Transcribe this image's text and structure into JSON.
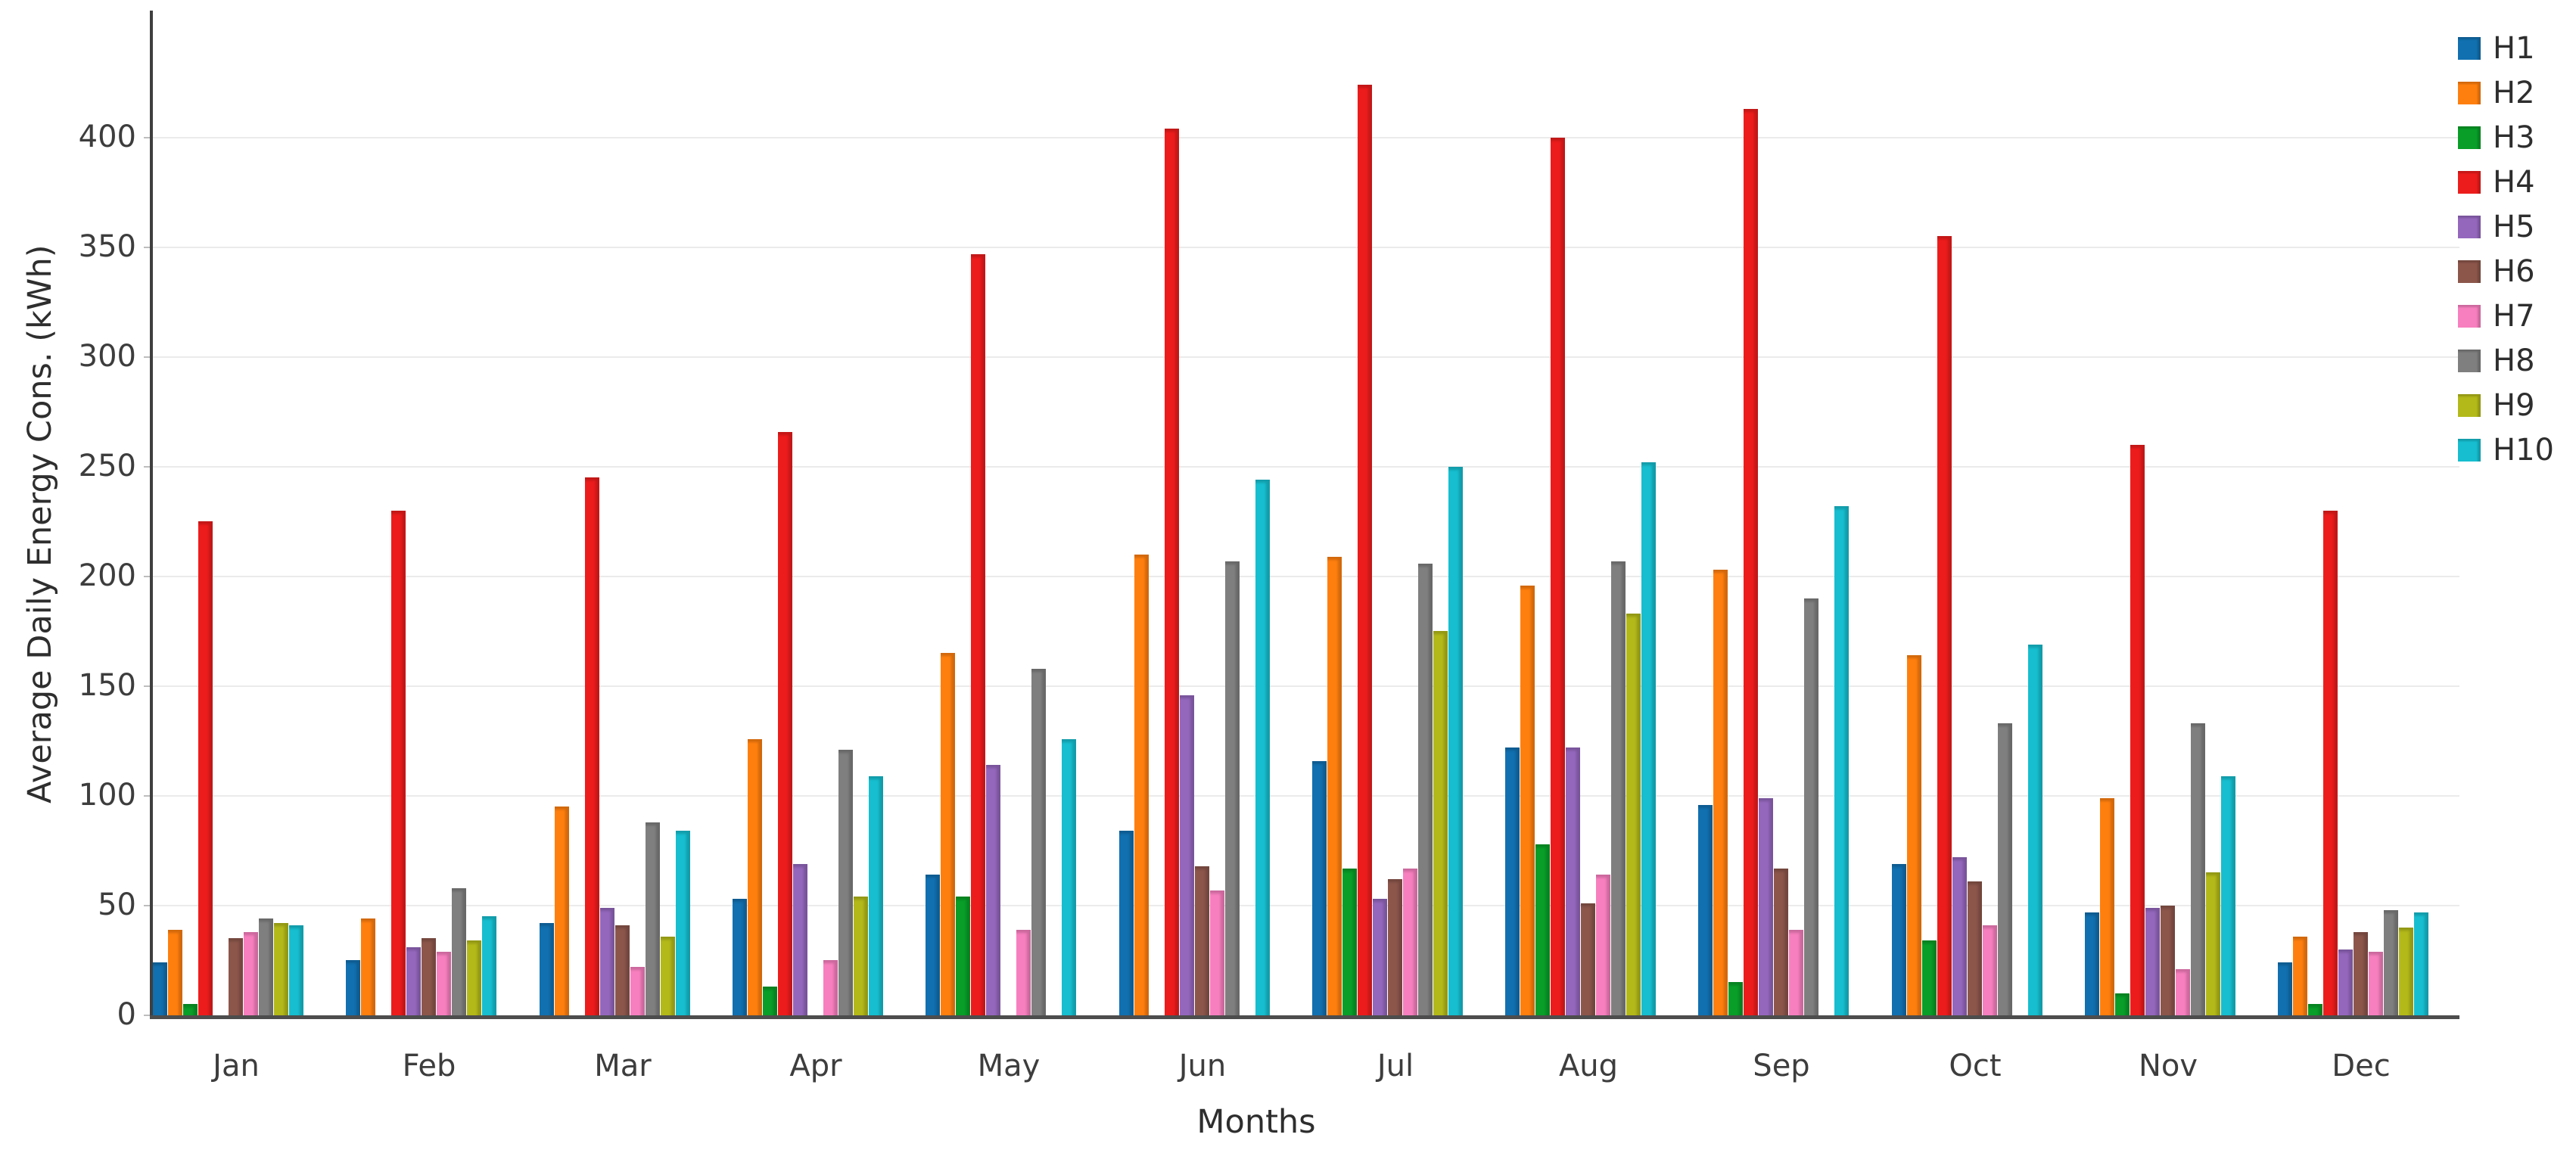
{
  "figure": {
    "y_axis_title": "Average Daily Energy Cons. (kWh)",
    "x_axis_title": "Months"
  },
  "chart_data": {
    "type": "bar",
    "title": "",
    "xlabel": "Months",
    "ylabel": "Average Daily Energy Cons. (kWh)",
    "categories": [
      "Jan",
      "Feb",
      "Mar",
      "Apr",
      "May",
      "Jun",
      "Jul",
      "Aug",
      "Sep",
      "Oct",
      "Nov",
      "Dec"
    ],
    "y_ticks": [
      0,
      50,
      100,
      150,
      200,
      250,
      300,
      350,
      400
    ],
    "ylim": [
      0,
      440
    ],
    "grid": true,
    "legend_position": "outside-top-right",
    "series": [
      {
        "name": "H1",
        "color": "#1170b0",
        "values": [
          24,
          25,
          42,
          53,
          64,
          84,
          116,
          122,
          96,
          69,
          47,
          24
        ]
      },
      {
        "name": "H2",
        "color": "#ff7f0e",
        "values": [
          39,
          44,
          95,
          126,
          165,
          210,
          209,
          196,
          203,
          164,
          99,
          36
        ]
      },
      {
        "name": "H3",
        "color": "#089e28",
        "values": [
          5,
          0,
          0,
          13,
          54,
          0,
          67,
          78,
          15,
          34,
          10,
          5
        ]
      },
      {
        "name": "H4",
        "color": "#ed1c1c",
        "values": [
          225,
          230,
          245,
          266,
          347,
          404,
          424,
          400,
          413,
          355,
          260,
          230
        ]
      },
      {
        "name": "H5",
        "color": "#9467bd",
        "values": [
          0,
          31,
          49,
          69,
          114,
          146,
          53,
          122,
          99,
          72,
          49,
          30
        ]
      },
      {
        "name": "H6",
        "color": "#8c564b",
        "values": [
          35,
          35,
          41,
          0,
          0,
          68,
          62,
          51,
          67,
          61,
          50,
          38
        ]
      },
      {
        "name": "H7",
        "color": "#f77fbf",
        "values": [
          38,
          29,
          22,
          25,
          39,
          57,
          67,
          64,
          39,
          41,
          21,
          29
        ]
      },
      {
        "name": "H8",
        "color": "#7f7f7f",
        "values": [
          44,
          58,
          88,
          121,
          158,
          207,
          206,
          207,
          190,
          133,
          133,
          48
        ]
      },
      {
        "name": "H9",
        "color": "#b3b919",
        "values": [
          42,
          34,
          36,
          54,
          0,
          0,
          175,
          183,
          0,
          0,
          65,
          40
        ]
      },
      {
        "name": "H10",
        "color": "#16becf",
        "values": [
          41,
          45,
          84,
          109,
          126,
          244,
          250,
          252,
          232,
          169,
          109,
          47
        ]
      }
    ]
  }
}
